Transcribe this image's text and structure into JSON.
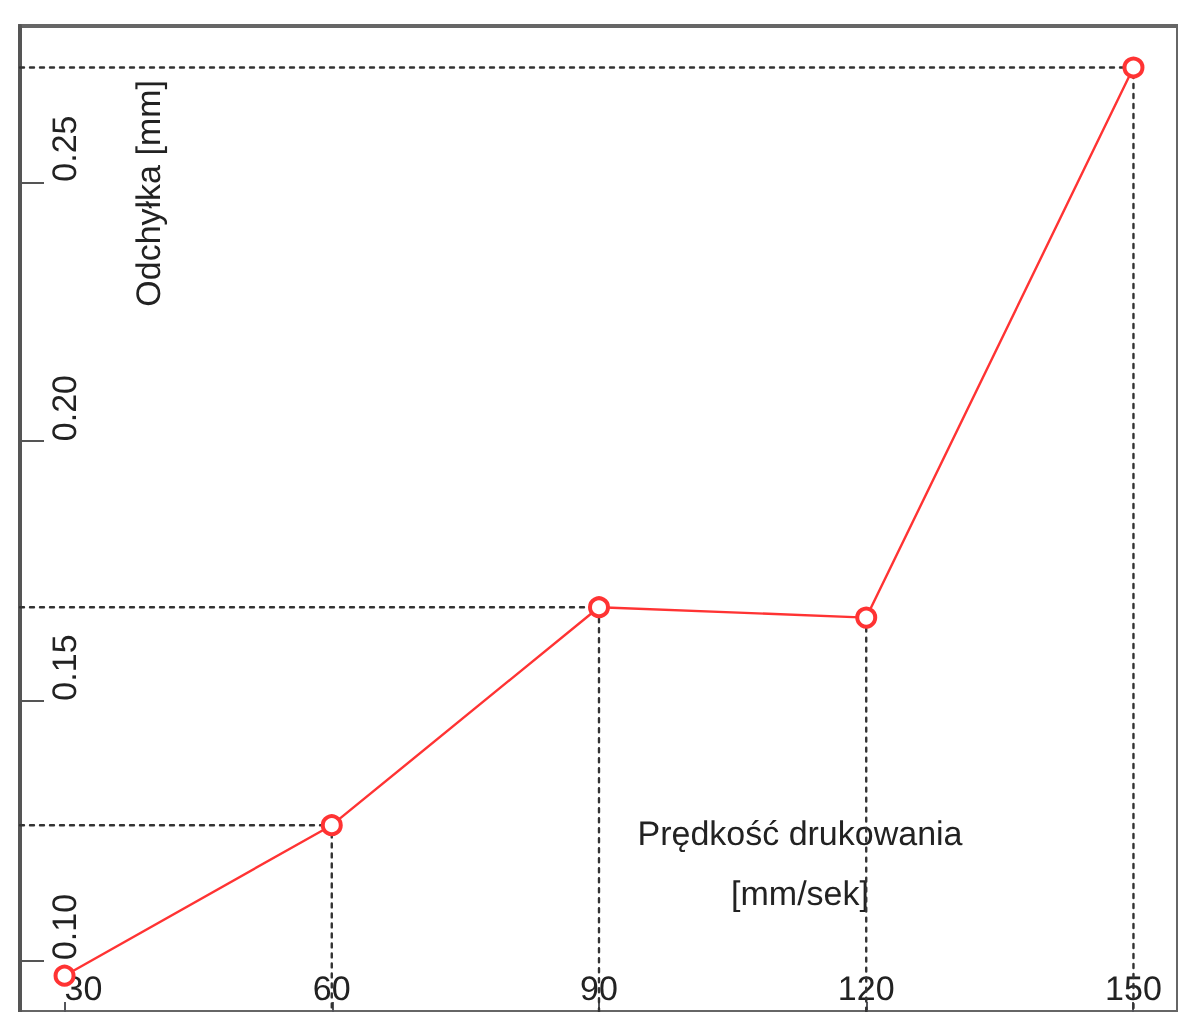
{
  "chart_data": {
    "type": "line",
    "xlabel": "Prędkość drukowania\n[mm/sek]",
    "ylabel": "Odchyłka [mm]",
    "x": [
      30,
      60,
      90,
      120,
      150
    ],
    "series": [
      {
        "color": "#ff3333",
        "values": [
          0.097,
          0.126,
          0.168,
          0.166,
          0.272
        ],
        "marker": "circle",
        "line_style": "solid"
      },
      {
        "color": "#333333",
        "x": [
          25,
          60,
          60
        ],
        "values": [
          0.126,
          0.126,
          0.09
        ],
        "marker": "none",
        "line_style": "dotted"
      },
      {
        "color": "#333333",
        "x": [
          25,
          90,
          90
        ],
        "values": [
          0.168,
          0.168,
          0.09
        ],
        "marker": "none",
        "line_style": "dotted"
      },
      {
        "color": "#333333",
        "x": [
          120,
          120
        ],
        "values": [
          0.166,
          0.09
        ],
        "marker": "none",
        "line_style": "dotted"
      },
      {
        "color": "#333333",
        "x": [
          25,
          150,
          150
        ],
        "values": [
          0.272,
          0.272,
          0.09
        ],
        "marker": "none",
        "line_style": "dotted"
      }
    ],
    "xlim": [
      25,
      155
    ],
    "ylim": [
      0.09,
      0.28
    ],
    "xticks": [
      30,
      60,
      90,
      120,
      150
    ],
    "yticks": [
      {
        "value": 0.1,
        "label": "0.10"
      },
      {
        "value": 0.15,
        "label": "0.15"
      },
      {
        "value": 0.2,
        "label": "0.20"
      },
      {
        "value": 0.25,
        "label": "0.25"
      }
    ]
  }
}
